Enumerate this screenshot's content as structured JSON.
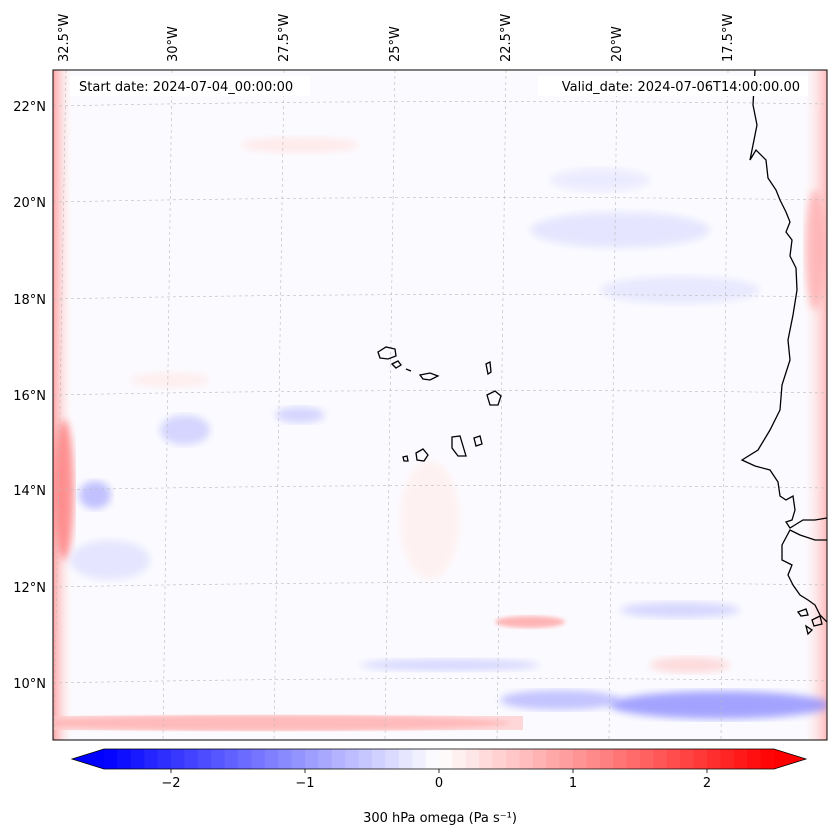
{
  "map": {
    "start_label": "Start date: 2024-07-04_00:00:00",
    "valid_label": "Valid_date: 2024-07-06T14:00:00.00",
    "lon_labels": [
      "32.5°W",
      "30°W",
      "27.5°W",
      "25°W",
      "22.5°W",
      "20°W",
      "17.5°W"
    ],
    "lat_labels": [
      "22°N",
      "20°N",
      "18°N",
      "16°N",
      "14°N",
      "12°N",
      "10°N"
    ],
    "colors": {
      "negative": "#0000ff",
      "positive": "#ff0000",
      "neutral": "#ffffff",
      "coast": "#000000",
      "grid": "#bbbbbb"
    }
  },
  "colorbar": {
    "label": "300 hPa omega (Pa s⁻¹)",
    "ticks": [
      "−2",
      "−1",
      "0",
      "1",
      "2"
    ],
    "tick_values": [
      -2,
      -1,
      0,
      1,
      2
    ],
    "range": [
      -2.5,
      2.5
    ]
  }
}
